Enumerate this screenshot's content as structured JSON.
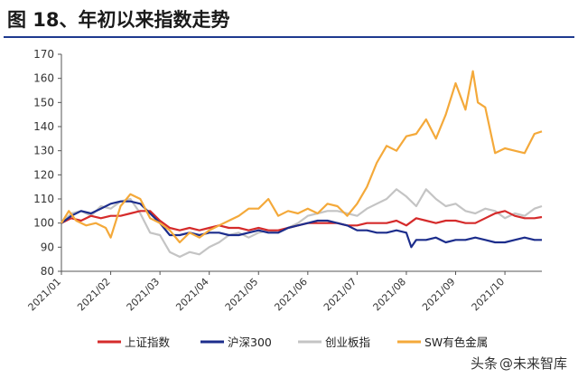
{
  "figure": {
    "title": "图 18、年初以来指数走势",
    "watermark_prefix": "头条",
    "watermark": "@未来智库"
  },
  "chart_data": {
    "type": "line",
    "title": "",
    "xlabel": "",
    "ylabel": "",
    "ylim": [
      80,
      170
    ],
    "yticks": [
      80,
      90,
      100,
      110,
      120,
      130,
      140,
      150,
      160,
      170
    ],
    "x_ticks": [
      "2021/01",
      "2021/02",
      "2021/03",
      "2021/04",
      "2021/05",
      "2021/06",
      "2021/07",
      "2021/08",
      "2021/09",
      "2021/10"
    ],
    "x_range": [
      0,
      9.75
    ],
    "grid": false,
    "legend_position": "bottom",
    "colors": {
      "上证指数": "#d52b2b",
      "沪深300": "#1c2d8c",
      "创业板指": "#c4c4c4",
      "SW有色金属": "#f4a93a"
    },
    "series": [
      {
        "name": "上证指数",
        "x": [
          0,
          0.2,
          0.4,
          0.6,
          0.8,
          1.0,
          1.2,
          1.4,
          1.6,
          1.8,
          2.0,
          2.2,
          2.4,
          2.6,
          2.8,
          3.0,
          3.2,
          3.4,
          3.6,
          3.8,
          4.0,
          4.2,
          4.4,
          4.6,
          4.8,
          5.0,
          5.2,
          5.4,
          5.6,
          5.8,
          6.0,
          6.2,
          6.4,
          6.6,
          6.8,
          7.0,
          7.2,
          7.4,
          7.6,
          7.8,
          8.0,
          8.2,
          8.4,
          8.6,
          8.8,
          9.0,
          9.2,
          9.4,
          9.6,
          9.75
        ],
        "y": [
          100,
          102,
          101,
          103,
          102,
          103,
          103,
          104,
          105,
          105,
          101,
          98,
          97,
          98,
          97,
          98,
          99,
          98,
          98,
          97,
          98,
          97,
          97,
          98,
          99,
          100,
          100,
          100,
          100,
          99,
          99,
          100,
          100,
          100,
          101,
          99,
          102,
          101,
          100,
          101,
          101,
          100,
          100,
          102,
          104,
          105,
          103,
          102,
          102,
          102.5
        ]
      },
      {
        "name": "沪深300",
        "x": [
          0,
          0.2,
          0.4,
          0.6,
          0.8,
          1.0,
          1.2,
          1.4,
          1.6,
          1.8,
          2.0,
          2.2,
          2.4,
          2.6,
          2.8,
          3.0,
          3.2,
          3.4,
          3.6,
          3.8,
          4.0,
          4.2,
          4.4,
          4.6,
          4.8,
          5.0,
          5.2,
          5.4,
          5.6,
          5.8,
          6.0,
          6.2,
          6.4,
          6.6,
          6.8,
          7.0,
          7.1,
          7.2,
          7.4,
          7.6,
          7.8,
          8.0,
          8.2,
          8.4,
          8.6,
          8.8,
          9.0,
          9.2,
          9.4,
          9.6,
          9.75
        ],
        "y": [
          100,
          103,
          105,
          104,
          106,
          108,
          109,
          109,
          108,
          104,
          100,
          95,
          95,
          96,
          95,
          96,
          96,
          95,
          95,
          96,
          97,
          96,
          96,
          98,
          99,
          100,
          101,
          101,
          100,
          99,
          97,
          97,
          96,
          96,
          97,
          96,
          90,
          93,
          93,
          94,
          92,
          93,
          93,
          94,
          93,
          92,
          92,
          93,
          94,
          93,
          93
        ]
      },
      {
        "name": "创业板指",
        "x": [
          0,
          0.2,
          0.4,
          0.6,
          0.8,
          1.0,
          1.2,
          1.4,
          1.6,
          1.8,
          2.0,
          2.2,
          2.4,
          2.6,
          2.8,
          3.0,
          3.2,
          3.4,
          3.6,
          3.8,
          4.0,
          4.2,
          4.4,
          4.6,
          4.8,
          5.0,
          5.2,
          5.4,
          5.6,
          5.8,
          6.0,
          6.2,
          6.4,
          6.6,
          6.8,
          7.0,
          7.2,
          7.4,
          7.6,
          7.8,
          8.0,
          8.2,
          8.4,
          8.6,
          8.8,
          9.0,
          9.2,
          9.4,
          9.6,
          9.75
        ],
        "y": [
          100,
          104,
          105,
          103,
          107,
          106,
          109,
          110,
          104,
          96,
          95,
          88,
          86,
          88,
          87,
          90,
          92,
          95,
          96,
          94,
          96,
          97,
          96,
          98,
          100,
          103,
          104,
          105,
          105,
          104,
          103,
          106,
          108,
          110,
          114,
          111,
          107,
          114,
          110,
          107,
          108,
          105,
          104,
          106,
          105,
          102,
          104,
          103,
          106,
          107
        ]
      },
      {
        "name": "SW有色金属",
        "x": [
          0,
          0.15,
          0.3,
          0.5,
          0.7,
          0.9,
          1.0,
          1.2,
          1.4,
          1.6,
          1.8,
          2.0,
          2.2,
          2.4,
          2.6,
          2.8,
          3.0,
          3.2,
          3.4,
          3.6,
          3.8,
          4.0,
          4.2,
          4.4,
          4.6,
          4.8,
          5.0,
          5.2,
          5.4,
          5.6,
          5.8,
          6.0,
          6.2,
          6.4,
          6.6,
          6.8,
          7.0,
          7.2,
          7.4,
          7.6,
          7.8,
          8.0,
          8.2,
          8.35,
          8.45,
          8.6,
          8.8,
          9.0,
          9.2,
          9.4,
          9.6,
          9.75
        ],
        "y": [
          100,
          105,
          101,
          99,
          100,
          98,
          94,
          107,
          112,
          110,
          102,
          100,
          97,
          92,
          96,
          94,
          97,
          99,
          101,
          103,
          106,
          106,
          110,
          103,
          105,
          104,
          106,
          104,
          108,
          107,
          103,
          108,
          115,
          125,
          132,
          130,
          136,
          137,
          143,
          135,
          145,
          158,
          147,
          163,
          150,
          148,
          129,
          131,
          130,
          129,
          137,
          138
        ]
      }
    ]
  }
}
